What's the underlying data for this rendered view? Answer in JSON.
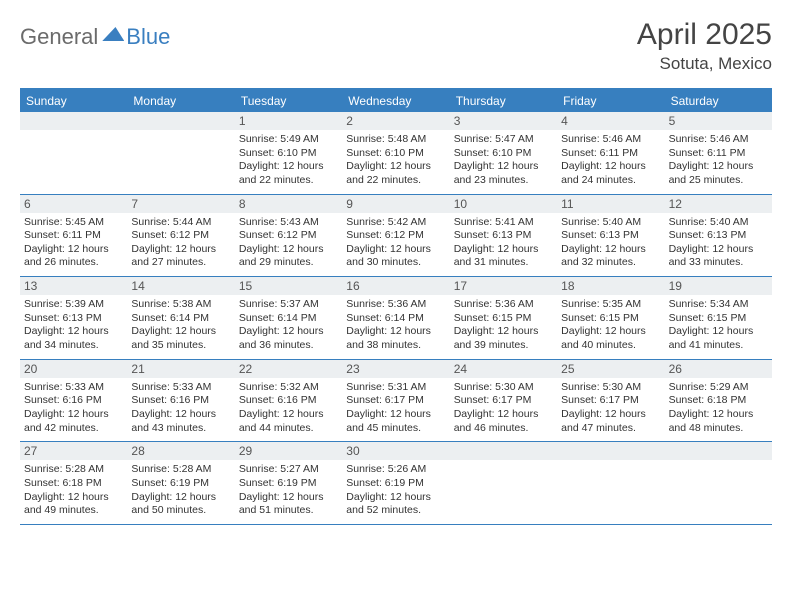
{
  "logo": {
    "part1": "General",
    "part2": "Blue"
  },
  "title": "April 2025",
  "location": "Sotuta, Mexico",
  "colors": {
    "accent": "#377fbf",
    "daybar": "#eceff1",
    "text": "#333333"
  },
  "day_headers": [
    "Sunday",
    "Monday",
    "Tuesday",
    "Wednesday",
    "Thursday",
    "Friday",
    "Saturday"
  ],
  "weeks": [
    [
      null,
      null,
      {
        "n": "1",
        "sr": "5:49 AM",
        "ss": "6:10 PM",
        "dl": "12 hours and 22 minutes."
      },
      {
        "n": "2",
        "sr": "5:48 AM",
        "ss": "6:10 PM",
        "dl": "12 hours and 22 minutes."
      },
      {
        "n": "3",
        "sr": "5:47 AM",
        "ss": "6:10 PM",
        "dl": "12 hours and 23 minutes."
      },
      {
        "n": "4",
        "sr": "5:46 AM",
        "ss": "6:11 PM",
        "dl": "12 hours and 24 minutes."
      },
      {
        "n": "5",
        "sr": "5:46 AM",
        "ss": "6:11 PM",
        "dl": "12 hours and 25 minutes."
      }
    ],
    [
      {
        "n": "6",
        "sr": "5:45 AM",
        "ss": "6:11 PM",
        "dl": "12 hours and 26 minutes."
      },
      {
        "n": "7",
        "sr": "5:44 AM",
        "ss": "6:12 PM",
        "dl": "12 hours and 27 minutes."
      },
      {
        "n": "8",
        "sr": "5:43 AM",
        "ss": "6:12 PM",
        "dl": "12 hours and 29 minutes."
      },
      {
        "n": "9",
        "sr": "5:42 AM",
        "ss": "6:12 PM",
        "dl": "12 hours and 30 minutes."
      },
      {
        "n": "10",
        "sr": "5:41 AM",
        "ss": "6:13 PM",
        "dl": "12 hours and 31 minutes."
      },
      {
        "n": "11",
        "sr": "5:40 AM",
        "ss": "6:13 PM",
        "dl": "12 hours and 32 minutes."
      },
      {
        "n": "12",
        "sr": "5:40 AM",
        "ss": "6:13 PM",
        "dl": "12 hours and 33 minutes."
      }
    ],
    [
      {
        "n": "13",
        "sr": "5:39 AM",
        "ss": "6:13 PM",
        "dl": "12 hours and 34 minutes."
      },
      {
        "n": "14",
        "sr": "5:38 AM",
        "ss": "6:14 PM",
        "dl": "12 hours and 35 minutes."
      },
      {
        "n": "15",
        "sr": "5:37 AM",
        "ss": "6:14 PM",
        "dl": "12 hours and 36 minutes."
      },
      {
        "n": "16",
        "sr": "5:36 AM",
        "ss": "6:14 PM",
        "dl": "12 hours and 38 minutes."
      },
      {
        "n": "17",
        "sr": "5:36 AM",
        "ss": "6:15 PM",
        "dl": "12 hours and 39 minutes."
      },
      {
        "n": "18",
        "sr": "5:35 AM",
        "ss": "6:15 PM",
        "dl": "12 hours and 40 minutes."
      },
      {
        "n": "19",
        "sr": "5:34 AM",
        "ss": "6:15 PM",
        "dl": "12 hours and 41 minutes."
      }
    ],
    [
      {
        "n": "20",
        "sr": "5:33 AM",
        "ss": "6:16 PM",
        "dl": "12 hours and 42 minutes."
      },
      {
        "n": "21",
        "sr": "5:33 AM",
        "ss": "6:16 PM",
        "dl": "12 hours and 43 minutes."
      },
      {
        "n": "22",
        "sr": "5:32 AM",
        "ss": "6:16 PM",
        "dl": "12 hours and 44 minutes."
      },
      {
        "n": "23",
        "sr": "5:31 AM",
        "ss": "6:17 PM",
        "dl": "12 hours and 45 minutes."
      },
      {
        "n": "24",
        "sr": "5:30 AM",
        "ss": "6:17 PM",
        "dl": "12 hours and 46 minutes."
      },
      {
        "n": "25",
        "sr": "5:30 AM",
        "ss": "6:17 PM",
        "dl": "12 hours and 47 minutes."
      },
      {
        "n": "26",
        "sr": "5:29 AM",
        "ss": "6:18 PM",
        "dl": "12 hours and 48 minutes."
      }
    ],
    [
      {
        "n": "27",
        "sr": "5:28 AM",
        "ss": "6:18 PM",
        "dl": "12 hours and 49 minutes."
      },
      {
        "n": "28",
        "sr": "5:28 AM",
        "ss": "6:19 PM",
        "dl": "12 hours and 50 minutes."
      },
      {
        "n": "29",
        "sr": "5:27 AM",
        "ss": "6:19 PM",
        "dl": "12 hours and 51 minutes."
      },
      {
        "n": "30",
        "sr": "5:26 AM",
        "ss": "6:19 PM",
        "dl": "12 hours and 52 minutes."
      },
      null,
      null,
      null
    ]
  ],
  "labels": {
    "sunrise": "Sunrise:",
    "sunset": "Sunset:",
    "daylight": "Daylight:"
  }
}
